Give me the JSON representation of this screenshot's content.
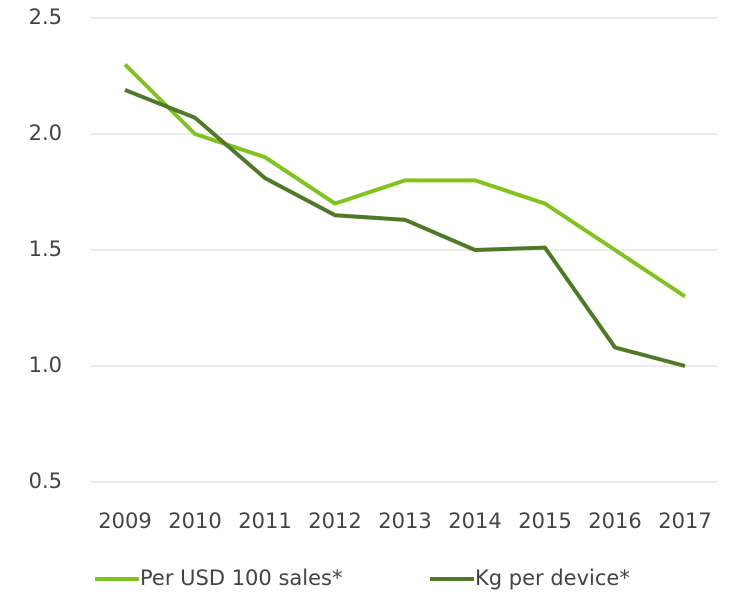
{
  "chart_data": {
    "type": "line",
    "categories": [
      "2009",
      "2010",
      "2011",
      "2012",
      "2013",
      "2014",
      "2015",
      "2016",
      "2017"
    ],
    "series": [
      {
        "name": "Per USD 100 sales*",
        "color": "#7fc31c",
        "values": [
          2.3,
          2.0,
          1.9,
          1.7,
          1.8,
          1.8,
          1.7,
          1.5,
          1.3
        ]
      },
      {
        "name": "Kg per device*",
        "color": "#4e7a27",
        "values": [
          2.19,
          2.07,
          1.81,
          1.65,
          1.63,
          1.5,
          1.51,
          1.08,
          1.0
        ]
      }
    ],
    "ylim": [
      0.5,
      2.5
    ],
    "yticks": [
      0.5,
      {
        "value": 1.0,
        "label": "1.0"
      },
      1.5,
      {
        "value": 2.0,
        "label": "2.0"
      },
      2.5
    ],
    "grid": true,
    "legend": "bottom"
  }
}
